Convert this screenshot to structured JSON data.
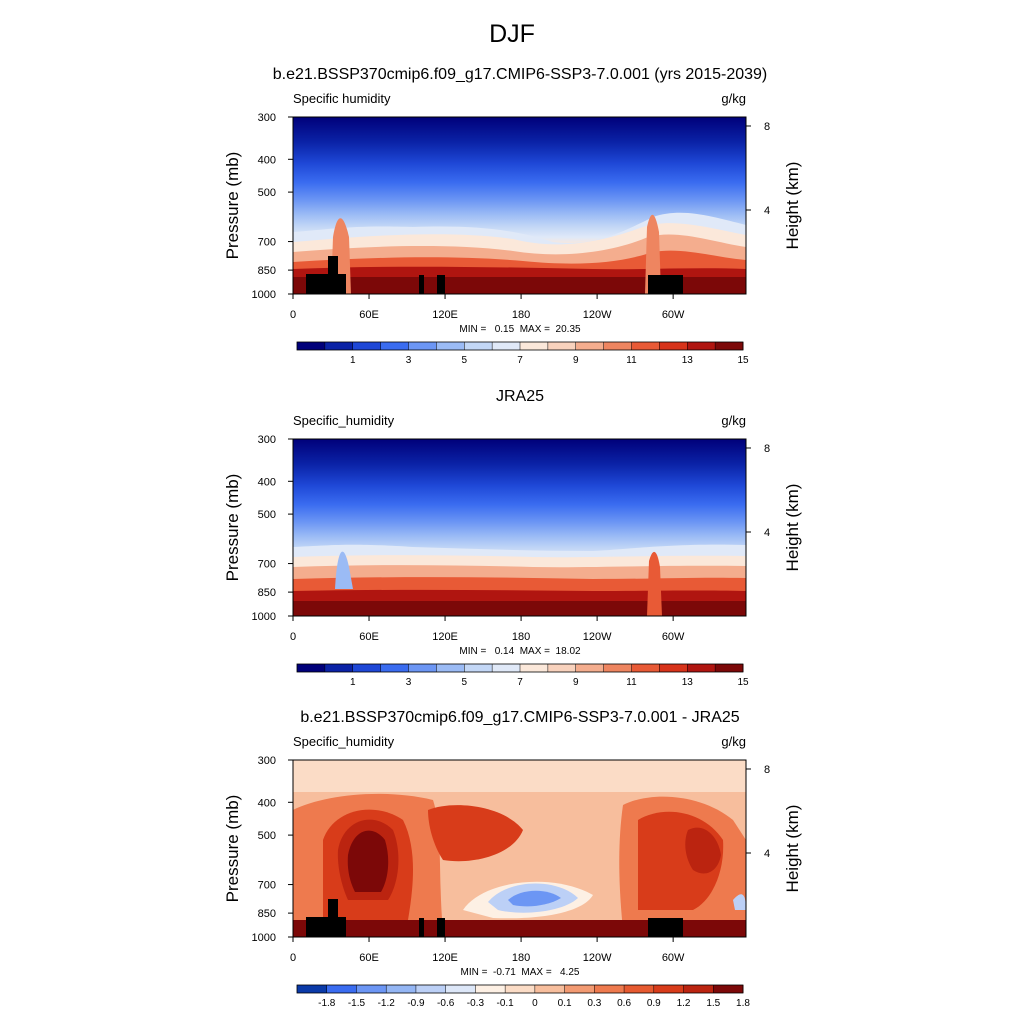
{
  "figure": {
    "title": "DJF"
  },
  "colors": {
    "full_field": [
      "#00007a",
      "#0a22a6",
      "#1e47d6",
      "#3a6cf0",
      "#6c96f4",
      "#9bbbf5",
      "#c3d7f6",
      "#e0e9f8",
      "#fbe8da",
      "#f8d2bd",
      "#f4ad8e",
      "#ee8560",
      "#e85a36",
      "#d7331a",
      "#b01510",
      "#7c0808"
    ],
    "difference": [
      "#0a3aa8",
      "#3a6cf0",
      "#6c96f4",
      "#94b6f4",
      "#bcd0f6",
      "#dde7f8",
      "#fdf0e4",
      "#fbdcc6",
      "#f7be9d",
      "#f29a72",
      "#ee7a4e",
      "#e65a30",
      "#d83c1a",
      "#bb2410",
      "#7c0808"
    ],
    "land_mask": "#000000"
  },
  "chart_data": [
    {
      "type": "heatmap",
      "panel_title": "b.e21.BSSP370cmip6.f09_g17.CMIP6-SSP3-7.0.001 (yrs 2015-2039)",
      "variable": "Specific humidity",
      "units": "g/kg",
      "xlabel": "",
      "ylabel": "Pressure (mb)",
      "y2label": "Height (km)",
      "x_ticks": [
        "0",
        "60E",
        "120E",
        "180",
        "120W",
        "60W"
      ],
      "y_ticks": [
        "300",
        "400",
        "500",
        "700",
        "850",
        "1000"
      ],
      "y2_ticks": [
        "8",
        "4"
      ],
      "xlim": [
        0,
        357.5
      ],
      "ylim": [
        1000,
        300
      ],
      "stats": "MIN =   0.15  MAX =  20.35",
      "min": 0.15,
      "max": 20.35,
      "colorbar_levels": [
        "0",
        "1",
        "2",
        "3",
        "4",
        "5",
        "6",
        "7",
        "8",
        "9",
        "10",
        "11",
        "12",
        "13",
        "14",
        "15"
      ],
      "colorbar_labels": [
        "1",
        "3",
        "5",
        "7",
        "9",
        "11",
        "13",
        "15"
      ],
      "has_land_mask": true
    },
    {
      "type": "heatmap",
      "panel_title": "JRA25",
      "variable": "Specific_humidity",
      "units": "g/kg",
      "xlabel": "",
      "ylabel": "Pressure (mb)",
      "y2label": "Height (km)",
      "x_ticks": [
        "0",
        "60E",
        "120E",
        "180",
        "120W",
        "60W"
      ],
      "y_ticks": [
        "300",
        "400",
        "500",
        "700",
        "850",
        "1000"
      ],
      "y2_ticks": [
        "8",
        "4"
      ],
      "xlim": [
        0,
        357.5
      ],
      "ylim": [
        1000,
        300
      ],
      "stats": "MIN =   0.14  MAX =  18.02",
      "min": 0.14,
      "max": 18.02,
      "colorbar_levels": [
        "0",
        "1",
        "2",
        "3",
        "4",
        "5",
        "6",
        "7",
        "8",
        "9",
        "10",
        "11",
        "12",
        "13",
        "14",
        "15"
      ],
      "colorbar_labels": [
        "1",
        "3",
        "5",
        "7",
        "9",
        "11",
        "13",
        "15"
      ],
      "has_land_mask": false
    },
    {
      "type": "heatmap",
      "panel_title": "b.e21.BSSP370cmip6.f09_g17.CMIP6-SSP3-7.0.001 - JRA25",
      "variable": "Specific_humidity",
      "units": "g/kg",
      "xlabel": "",
      "ylabel": "Pressure (mb)",
      "y2label": "Height (km)",
      "x_ticks": [
        "0",
        "60E",
        "120E",
        "180",
        "120W",
        "60W"
      ],
      "y_ticks": [
        "300",
        "400",
        "500",
        "700",
        "850",
        "1000"
      ],
      "y2_ticks": [
        "8",
        "4"
      ],
      "xlim": [
        0,
        357.5
      ],
      "ylim": [
        1000,
        300
      ],
      "stats": "MIN =  -0.71  MAX =   4.25",
      "min": -0.71,
      "max": 4.25,
      "colorbar_levels": [
        "-1.8",
        "-1.5",
        "-1.2",
        "-0.9",
        "-0.6",
        "-0.3",
        "-0.1",
        "0",
        "0.1",
        "0.3",
        "0.6",
        "0.9",
        "1.2",
        "1.5",
        "1.8"
      ],
      "colorbar_labels": [
        "-1.8",
        "-1.5",
        "-1.2",
        "-0.9",
        "-0.6",
        "-0.3",
        "-0.1",
        "0",
        "0.1",
        "0.3",
        "0.6",
        "0.9",
        "1.2",
        "1.5",
        "1.8"
      ],
      "has_land_mask": true
    }
  ]
}
